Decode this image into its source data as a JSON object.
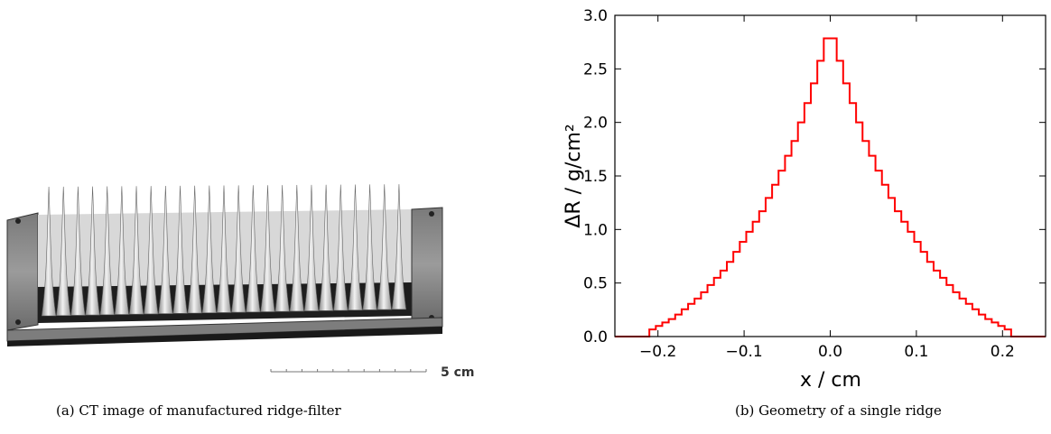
{
  "figure_a": {
    "caption": "(a) CT image of manufactured ridge-filter",
    "scale_bar_label": "5 cm",
    "ridge_count": 25
  },
  "figure_b": {
    "caption": "(b) Geometry of a single ridge"
  },
  "chart_data": {
    "type": "line",
    "title": "",
    "xlabel": "x / cm",
    "ylabel": "ΔR / g/cm²",
    "xlim": [
      -0.25,
      0.25
    ],
    "ylim": [
      0.0,
      3.0
    ],
    "xticks": [
      -0.2,
      -0.1,
      0.0,
      0.1,
      0.2
    ],
    "xtick_labels": [
      "−0.2",
      "−0.1",
      "0.0",
      "0.1",
      "0.2"
    ],
    "yticks": [
      0.0,
      0.5,
      1.0,
      1.5,
      2.0,
      2.5,
      3.0
    ],
    "ytick_labels": [
      "0.0",
      "0.5",
      "1.0",
      "1.5",
      "2.0",
      "2.5",
      "3.0"
    ],
    "grid": false,
    "series": [
      {
        "color": "#ff0000",
        "step": true,
        "x": [
          -0.25,
          -0.21,
          -0.18,
          -0.15,
          -0.12,
          -0.1,
          -0.08,
          -0.06,
          -0.04,
          -0.02,
          0.0,
          0.02,
          0.04,
          0.06,
          0.08,
          0.1,
          0.12,
          0.15,
          0.18,
          0.21,
          0.25
        ],
        "y": [
          0.0,
          0.05,
          0.18,
          0.38,
          0.65,
          0.9,
          1.15,
          1.48,
          1.85,
          2.33,
          2.89,
          2.33,
          1.85,
          1.48,
          1.15,
          0.9,
          0.65,
          0.38,
          0.18,
          0.05,
          0.0
        ]
      }
    ]
  }
}
